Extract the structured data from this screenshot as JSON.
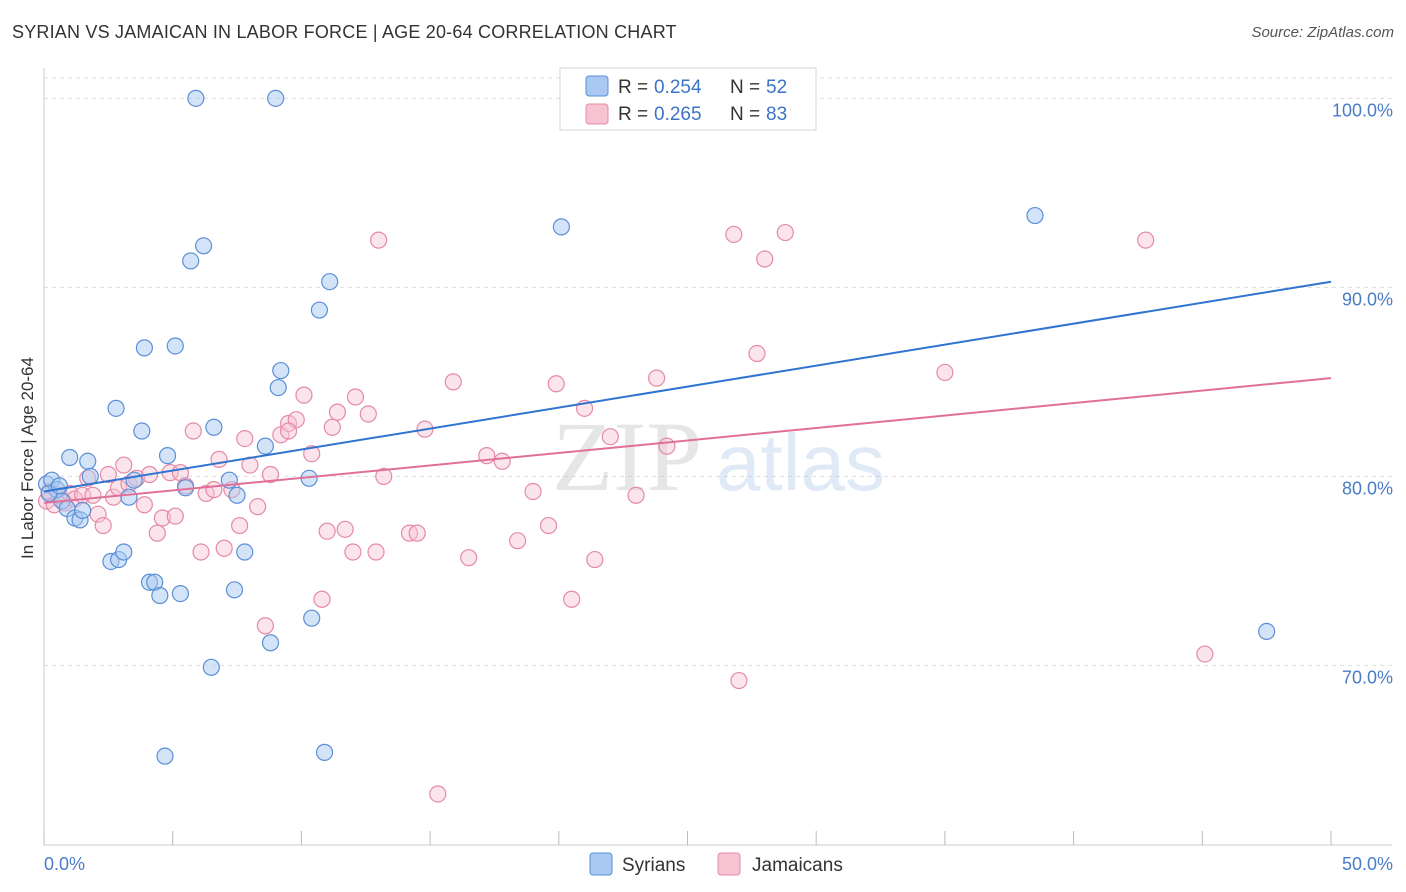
{
  "header": {
    "title": "SYRIAN VS JAMAICAN IN LABOR FORCE | AGE 20-64 CORRELATION CHART",
    "source": "Source: ZipAtlas.com"
  },
  "watermark": {
    "zip": "ZIP",
    "atlas": "atlas"
  },
  "colors": {
    "syrian_fill": "#a9c9f2",
    "syrian_stroke": "#5b8fd6",
    "syrian_line": "#2f74d0",
    "jamaican_fill": "#f7c3d3",
    "jamaican_stroke": "#e58aa8",
    "jamaican_line": "#e0709a",
    "tick_text": "#4a7cc7",
    "grid": "#dddddd"
  },
  "legend": {
    "rows": [
      {
        "r_label": "R =",
        "r_value": "0.254",
        "n_label": "N =",
        "n_value": "52"
      },
      {
        "r_label": "R =",
        "r_value": "0.265",
        "n_label": "N =",
        "n_value": "83"
      }
    ]
  },
  "chart_data": {
    "type": "scatter",
    "title": "SYRIAN VS JAMAICAN IN LABOR FORCE | AGE 20-64 CORRELATION CHART",
    "xlabel": "",
    "ylabel": "In Labor Force | Age 20-64",
    "xlim": [
      0,
      50
    ],
    "ylim": [
      60.5,
      101.5
    ],
    "x_tick_labels": [
      "0.0%",
      "50.0%"
    ],
    "y_ticks": [
      70,
      80,
      90,
      100
    ],
    "y_tick_labels": [
      "70.0%",
      "80.0%",
      "90.0%",
      "100.0%"
    ],
    "grid": "horizontal dashed",
    "legend_position": "top-center",
    "series": [
      {
        "name": "Syrians",
        "r": 0.254,
        "n": 52,
        "trend": [
          [
            0,
            79.2
          ],
          [
            50,
            90.3
          ]
        ],
        "points": [
          [
            0.1,
            79.6
          ],
          [
            0.3,
            79.8
          ],
          [
            0.5,
            79.3
          ],
          [
            0.7,
            78.7
          ],
          [
            0.9,
            78.3
          ],
          [
            1.0,
            81.0
          ],
          [
            1.2,
            77.8
          ],
          [
            1.4,
            77.7
          ],
          [
            1.5,
            78.2
          ],
          [
            1.7,
            80.8
          ],
          [
            1.8,
            80.0
          ],
          [
            2.6,
            75.5
          ],
          [
            2.8,
            83.6
          ],
          [
            2.9,
            75.6
          ],
          [
            3.1,
            76.0
          ],
          [
            3.3,
            78.9
          ],
          [
            3.5,
            79.8
          ],
          [
            3.8,
            82.4
          ],
          [
            3.9,
            86.8
          ],
          [
            4.1,
            74.4
          ],
          [
            4.3,
            74.4
          ],
          [
            4.5,
            73.7
          ],
          [
            4.7,
            65.2
          ],
          [
            4.8,
            81.1
          ],
          [
            5.1,
            86.9
          ],
          [
            5.3,
            73.8
          ],
          [
            5.5,
            79.4
          ],
          [
            5.7,
            91.4
          ],
          [
            5.9,
            100.0
          ],
          [
            6.2,
            92.2
          ],
          [
            6.5,
            69.9
          ],
          [
            6.6,
            82.6
          ],
          [
            7.2,
            79.8
          ],
          [
            7.4,
            74.0
          ],
          [
            7.5,
            79.0
          ],
          [
            7.8,
            76.0
          ],
          [
            8.6,
            81.6
          ],
          [
            8.8,
            71.2
          ],
          [
            9.0,
            100.0
          ],
          [
            9.1,
            84.7
          ],
          [
            9.2,
            85.6
          ],
          [
            10.3,
            79.9
          ],
          [
            10.4,
            72.5
          ],
          [
            10.7,
            88.8
          ],
          [
            10.9,
            65.4
          ],
          [
            11.1,
            90.3
          ],
          [
            20.1,
            93.2
          ],
          [
            20.4,
            100.0
          ],
          [
            38.5,
            93.8
          ],
          [
            47.5,
            71.8
          ],
          [
            0.2,
            79.1
          ],
          [
            0.6,
            79.5
          ]
        ]
      },
      {
        "name": "Jamaicans",
        "r": 0.265,
        "n": 83,
        "trend": [
          [
            0,
            78.6
          ],
          [
            50,
            85.2
          ]
        ],
        "points": [
          [
            0.1,
            78.7
          ],
          [
            0.2,
            79.2
          ],
          [
            0.4,
            78.5
          ],
          [
            0.6,
            79.0
          ],
          [
            0.8,
            78.6
          ],
          [
            1.0,
            79.1
          ],
          [
            1.2,
            78.8
          ],
          [
            1.5,
            79.0
          ],
          [
            1.7,
            79.9
          ],
          [
            1.9,
            79.0
          ],
          [
            2.1,
            78.0
          ],
          [
            2.3,
            77.4
          ],
          [
            2.5,
            80.1
          ],
          [
            2.7,
            78.9
          ],
          [
            2.9,
            79.4
          ],
          [
            3.1,
            80.6
          ],
          [
            3.3,
            79.6
          ],
          [
            3.6,
            79.9
          ],
          [
            3.9,
            78.5
          ],
          [
            4.1,
            80.1
          ],
          [
            4.4,
            77.0
          ],
          [
            4.6,
            77.8
          ],
          [
            4.9,
            80.2
          ],
          [
            5.1,
            77.9
          ],
          [
            5.3,
            80.2
          ],
          [
            5.5,
            79.5
          ],
          [
            5.8,
            82.4
          ],
          [
            6.1,
            76.0
          ],
          [
            6.3,
            79.1
          ],
          [
            6.6,
            79.3
          ],
          [
            6.8,
            80.9
          ],
          [
            7.0,
            76.2
          ],
          [
            7.3,
            79.3
          ],
          [
            7.6,
            77.4
          ],
          [
            7.8,
            82.0
          ],
          [
            8.0,
            80.6
          ],
          [
            8.3,
            78.4
          ],
          [
            8.6,
            72.1
          ],
          [
            8.8,
            80.1
          ],
          [
            9.2,
            82.2
          ],
          [
            9.5,
            82.8
          ],
          [
            9.8,
            83.0
          ],
          [
            10.1,
            84.3
          ],
          [
            10.4,
            81.2
          ],
          [
            10.8,
            73.5
          ],
          [
            11.0,
            77.1
          ],
          [
            11.2,
            82.6
          ],
          [
            11.4,
            83.4
          ],
          [
            11.7,
            77.2
          ],
          [
            12.0,
            76.0
          ],
          [
            12.1,
            84.2
          ],
          [
            12.6,
            83.3
          ],
          [
            12.9,
            76.0
          ],
          [
            13.2,
            80.0
          ],
          [
            14.2,
            77.0
          ],
          [
            14.5,
            77.0
          ],
          [
            14.8,
            82.5
          ],
          [
            15.3,
            63.2
          ],
          [
            15.9,
            85.0
          ],
          [
            16.5,
            75.7
          ],
          [
            17.2,
            81.1
          ],
          [
            17.8,
            80.8
          ],
          [
            18.4,
            76.6
          ],
          [
            19.0,
            79.2
          ],
          [
            19.6,
            77.4
          ],
          [
            19.9,
            84.9
          ],
          [
            20.5,
            73.5
          ],
          [
            21.0,
            83.6
          ],
          [
            21.4,
            75.6
          ],
          [
            22.0,
            82.1
          ],
          [
            23.0,
            79.0
          ],
          [
            23.8,
            85.2
          ],
          [
            24.2,
            81.6
          ],
          [
            26.8,
            92.8
          ],
          [
            27.0,
            69.2
          ],
          [
            27.7,
            86.5
          ],
          [
            28.0,
            91.5
          ],
          [
            28.8,
            92.9
          ],
          [
            35.0,
            85.5
          ],
          [
            42.8,
            92.5
          ],
          [
            45.1,
            70.6
          ],
          [
            13.0,
            92.5
          ],
          [
            9.5,
            82.4
          ]
        ]
      }
    ]
  },
  "bottom_legend": {
    "items": [
      {
        "label": "Syrians"
      },
      {
        "label": "Jamaicans"
      }
    ]
  }
}
